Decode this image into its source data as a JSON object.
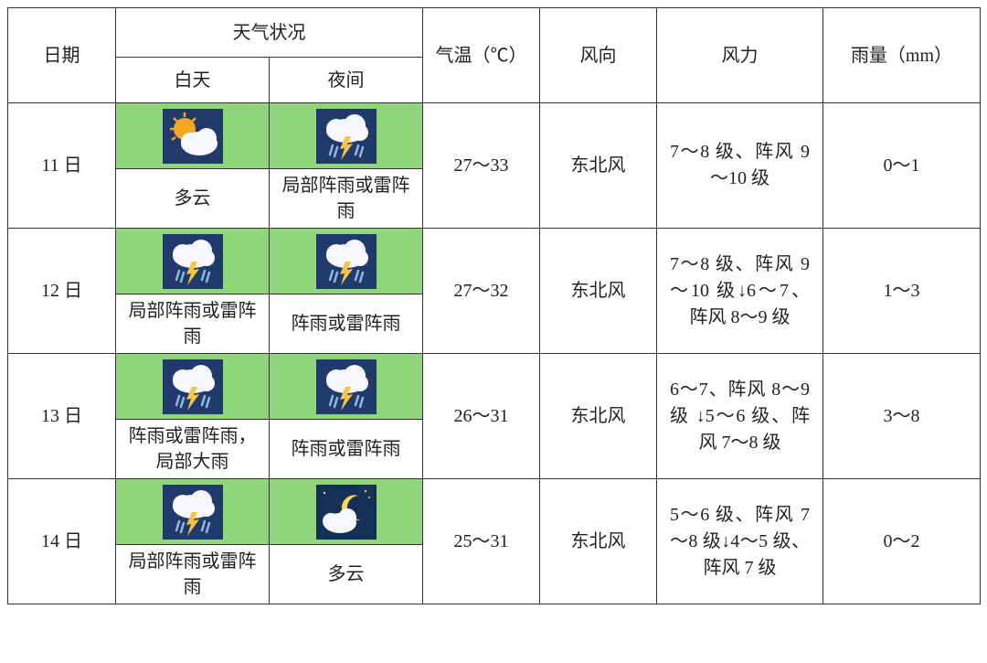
{
  "colors": {
    "icon_bg_green": "#8fd67a",
    "icon_tile_blue": "#1f3a6b",
    "cloud": "#f5f7fa",
    "cloud_shadow": "#d6dde6",
    "sun": "#f6a623",
    "lightning": "#f6c445",
    "rain": "#8fb7e0",
    "moon": "#f3d65e",
    "night_sky": "#163158"
  },
  "headers": {
    "date": "日期",
    "weather": "天气状况",
    "day": "白天",
    "night": "夜间",
    "temp": "气温（℃）",
    "wind_dir": "风向",
    "wind_force": "风力",
    "rain": "雨量（mm）"
  },
  "rows": [
    {
      "date": "11 日",
      "day_icon": "sun-cloud",
      "day_text": "多云",
      "night_icon": "thunder",
      "night_text": "局部阵雨或雷阵雨",
      "temp": "27～33",
      "wind_dir": "东北风",
      "wind_force": "7～8 级、阵风 9～10 级",
      "rain": "0～1"
    },
    {
      "date": "12 日",
      "day_icon": "thunder",
      "day_text": "局部阵雨或雷阵雨",
      "night_icon": "thunder",
      "night_text": "阵雨或雷阵雨",
      "temp": "27～32",
      "wind_dir": "东北风",
      "wind_force": "7～8 级、阵风 9～10 级↓6～7、阵风 8～9 级",
      "rain": "1～3"
    },
    {
      "date": "13 日",
      "day_icon": "thunder",
      "day_text": "阵雨或雷阵雨，局部大雨",
      "night_icon": "thunder",
      "night_text": "阵雨或雷阵雨",
      "temp": "26～31",
      "wind_dir": "东北风",
      "wind_force": "6～7、阵风 8～9 级 ↓5～6 级、阵风 7～8 级",
      "rain": "3～8"
    },
    {
      "date": "14 日",
      "day_icon": "thunder",
      "day_text": "局部阵雨或雷阵雨",
      "night_icon": "moon-cloud",
      "night_text": "多云",
      "temp": "25～31",
      "wind_dir": "东北风",
      "wind_force": "5～6 级、阵风 7～8 级↓4～5 级、阵风 7 级",
      "rain": "0～2"
    }
  ]
}
